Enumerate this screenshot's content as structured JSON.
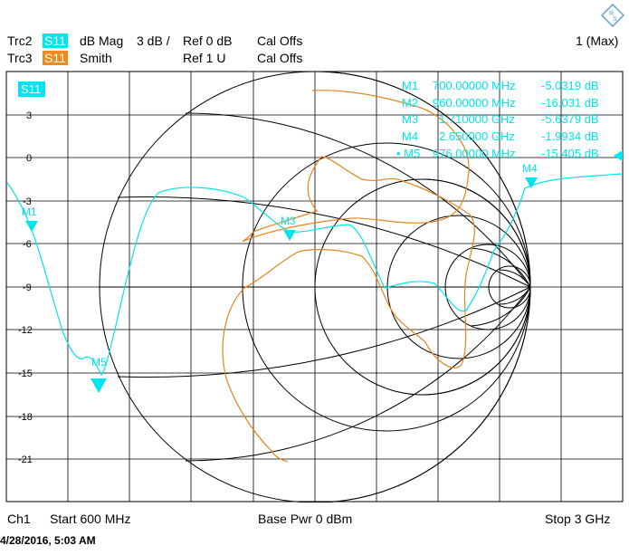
{
  "header": {
    "trc2": {
      "name": "Trc2",
      "param": "S11",
      "format": "dB Mag",
      "scale": "3 dB /",
      "ref": "Ref 0 dB",
      "cal": "Cal Offs"
    },
    "trc3": {
      "name": "Trc3",
      "param": "S11",
      "format": "Smith",
      "ref": "Ref 1 U",
      "cal": "Cal Offs"
    },
    "max_label": "1 (Max)"
  },
  "plot": {
    "trace_tag": "S11",
    "y_ticks": [
      "3",
      "0",
      "-3",
      "-6",
      "-9",
      "-12",
      "-15",
      "-18",
      "-21"
    ],
    "markers": [
      {
        "id": "M1",
        "label": "M1",
        "freq": "700.00000 MHz",
        "value": "-5.0319 dB"
      },
      {
        "id": "M2",
        "label": "M2",
        "freq": "960.00000 MHz",
        "value": "-16.031 dB"
      },
      {
        "id": "M3",
        "label": "M3",
        "freq": "1.710000 GHz",
        "value": "-5.6379 dB"
      },
      {
        "id": "M4",
        "label": "M4",
        "freq": "2.650000 GHz",
        "value": "-1.9934 dB"
      },
      {
        "id": "M5",
        "label": "• M5",
        "freq": "976.00000 MHz",
        "value": "-15.405 dB"
      }
    ],
    "marker_tags": {
      "m1": "M1",
      "m3": "M3",
      "m4": "M4",
      "m5": "M5"
    }
  },
  "footer": {
    "channel": "Ch1",
    "start": "Start  600 MHz",
    "power": "Base Pwr  0 dBm",
    "stop": "Stop  3 GHz"
  },
  "timestamp": "4/28/2016, 5:03 AM",
  "colors": {
    "trace_mag": "#00e5ee",
    "trace_smith": "#e8841c",
    "grid": "#000000"
  }
}
